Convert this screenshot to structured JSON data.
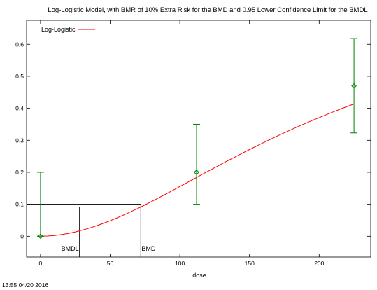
{
  "chart_data": {
    "type": "line",
    "title": "Log-Logistic Model, with BMR of 10% Extra Risk for the BMD and 0.95 Lower Confidence Limit for the BMDL",
    "xlabel": "dose",
    "ylabel": "",
    "xlim": [
      -10,
      237
    ],
    "ylim": [
      -0.065,
      0.675
    ],
    "x_ticks": [
      0,
      50,
      100,
      150,
      200
    ],
    "y_ticks": [
      0,
      0.1,
      0.2,
      0.3,
      0.4,
      0.5,
      0.6
    ],
    "x_tick_labels": [
      "0",
      "50",
      "100",
      "150",
      "200"
    ],
    "y_tick_labels": [
      "0",
      "0.1",
      "0.2",
      "0.3",
      "0.4",
      "0.5",
      "0.6"
    ],
    "legend": {
      "position": "top-left",
      "entries": [
        {
          "label": "Log-Logistic",
          "color": "#ff0000"
        }
      ]
    },
    "model_curve": {
      "name": "Log-Logistic",
      "color": "#ff0000",
      "x": [
        0,
        5,
        10,
        15,
        20,
        25,
        30,
        35,
        40,
        45,
        50,
        55,
        60,
        65,
        70,
        75,
        80,
        85,
        90,
        95,
        100,
        105,
        110,
        115,
        120,
        125,
        130,
        135,
        140,
        145,
        150,
        155,
        160,
        165,
        170,
        175,
        180,
        185,
        190,
        195,
        200,
        205,
        210,
        215,
        220,
        225
      ],
      "y": [
        0,
        0.0007,
        0.0025,
        0.0053,
        0.0091,
        0.0137,
        0.0192,
        0.0255,
        0.0325,
        0.0402,
        0.0486,
        0.0575,
        0.067,
        0.077,
        0.0874,
        0.0982,
        0.1092,
        0.1206,
        0.1321,
        0.1437,
        0.1555,
        0.1673,
        0.1792,
        0.191,
        0.2027,
        0.2144,
        0.226,
        0.2375,
        0.2488,
        0.26,
        0.271,
        0.2818,
        0.2925,
        0.303,
        0.3133,
        0.3234,
        0.3333,
        0.343,
        0.3525,
        0.3618,
        0.371,
        0.3799,
        0.3886,
        0.3972,
        0.4055,
        0.4137
      ]
    },
    "observed": {
      "color": "#008000",
      "points": [
        {
          "x": 0,
          "y": 0.0,
          "lower": 0.0,
          "upper": 0.2
        },
        {
          "x": 112,
          "y": 0.2,
          "lower": 0.1,
          "upper": 0.35
        },
        {
          "x": 225,
          "y": 0.47,
          "lower": 0.323,
          "upper": 0.618
        }
      ]
    },
    "bmr_level": 0.1,
    "bmd": {
      "label": "BMD",
      "value": 72
    },
    "bmdl": {
      "label": "BMDL",
      "value": 28
    },
    "timestamp": "13:55 04/20 2016"
  }
}
